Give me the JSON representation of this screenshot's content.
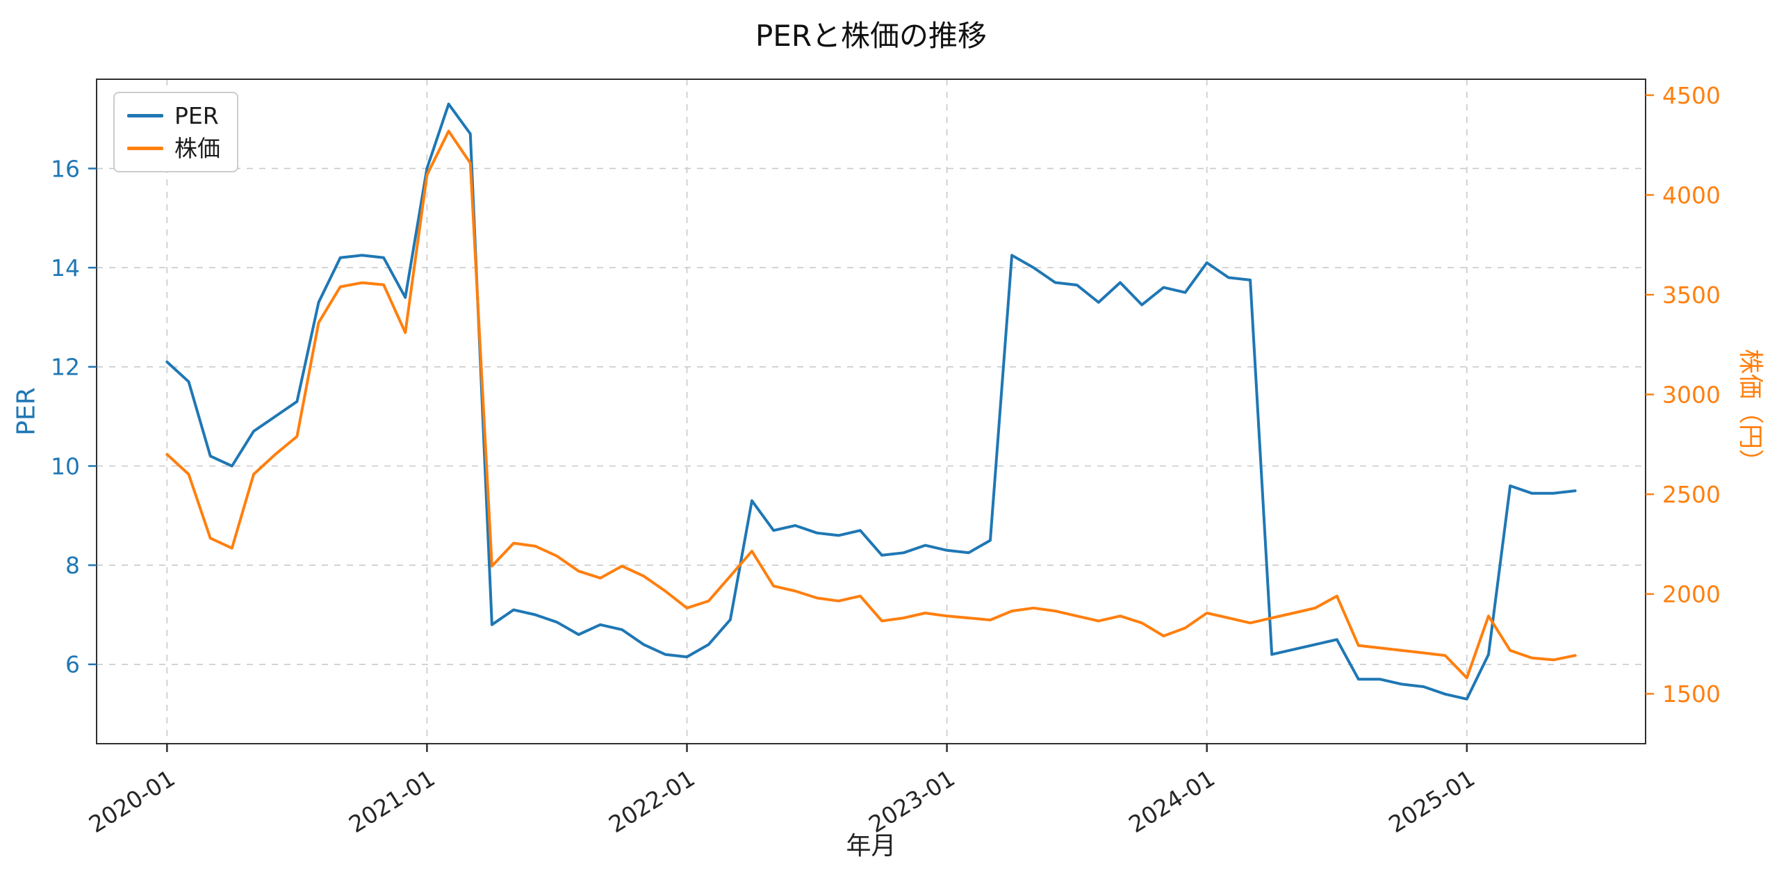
{
  "chart_data": {
    "type": "line",
    "title": "PERと株価の推移",
    "xlabel": "年月",
    "grid": true,
    "legend_position": "upper-left",
    "x": [
      "2020-01",
      "2020-02",
      "2020-03",
      "2020-04",
      "2020-05",
      "2020-06",
      "2020-07",
      "2020-08",
      "2020-09",
      "2020-10",
      "2020-11",
      "2020-12",
      "2021-01",
      "2021-02",
      "2021-03",
      "2021-04",
      "2021-05",
      "2021-06",
      "2021-07",
      "2021-08",
      "2021-09",
      "2021-10",
      "2021-11",
      "2021-12",
      "2022-01",
      "2022-02",
      "2022-03",
      "2022-04",
      "2022-05",
      "2022-06",
      "2022-07",
      "2022-08",
      "2022-09",
      "2022-10",
      "2022-11",
      "2022-12",
      "2023-01",
      "2023-02",
      "2023-03",
      "2023-04",
      "2023-05",
      "2023-06",
      "2023-07",
      "2023-08",
      "2023-09",
      "2023-10",
      "2023-11",
      "2023-12",
      "2024-01",
      "2024-02",
      "2024-03",
      "2024-04",
      "2024-05",
      "2024-06",
      "2024-07",
      "2024-08",
      "2024-09",
      "2024-10",
      "2024-11",
      "2024-12",
      "2025-01",
      "2025-02",
      "2025-03",
      "2025-04",
      "2025-05",
      "2025-06"
    ],
    "x_tick_indices": [
      0,
      12,
      24,
      36,
      48,
      60
    ],
    "x_tick_labels": [
      "2020-01",
      "2021-01",
      "2022-01",
      "2023-01",
      "2024-01",
      "2025-01"
    ],
    "left_axis": {
      "label": "PER",
      "color": "#1f77b4",
      "ticks": [
        6,
        8,
        10,
        12,
        14,
        16
      ],
      "range": [
        4.4,
        17.8
      ]
    },
    "right_axis": {
      "label": "株価（円）",
      "color": "#ff7f0e",
      "ticks": [
        1500,
        2000,
        2500,
        3000,
        3500,
        4000,
        4500
      ],
      "range": [
        1250,
        4580
      ]
    },
    "series": [
      {
        "name": "PER",
        "axis": "left",
        "color": "#1f77b4",
        "values": [
          12.1,
          11.7,
          10.2,
          10.0,
          10.7,
          11.0,
          11.3,
          13.3,
          14.2,
          14.25,
          14.2,
          13.4,
          16.0,
          17.3,
          16.7,
          6.8,
          7.1,
          7.0,
          6.85,
          6.6,
          6.8,
          6.7,
          6.4,
          6.2,
          6.15,
          6.4,
          6.9,
          9.3,
          8.7,
          8.8,
          8.65,
          8.6,
          8.7,
          8.2,
          8.25,
          8.4,
          8.3,
          8.25,
          8.5,
          14.25,
          14.0,
          13.7,
          13.65,
          13.3,
          13.7,
          13.25,
          13.6,
          13.5,
          14.1,
          13.8,
          13.75,
          6.2,
          6.3,
          6.4,
          6.5,
          5.7,
          5.7,
          5.6,
          5.55,
          5.4,
          5.3,
          6.2,
          9.6,
          9.45,
          9.45,
          9.5
        ]
      },
      {
        "name": "株価",
        "axis": "right",
        "color": "#ff7f0e",
        "values": [
          2700,
          2600,
          2280,
          2230,
          2600,
          2700,
          2790,
          3360,
          3540,
          3560,
          3550,
          3310,
          4100,
          4320,
          4160,
          2140,
          2255,
          2240,
          2190,
          2115,
          2080,
          2140,
          2090,
          2015,
          1930,
          1965,
          2090,
          2215,
          2040,
          2015,
          1980,
          1965,
          1990,
          1865,
          1880,
          1905,
          1890,
          1880,
          1870,
          1915,
          1930,
          1915,
          1890,
          1865,
          1890,
          1855,
          1790,
          1830,
          1905,
          1880,
          1855,
          1880,
          1905,
          1930,
          1990,
          1742,
          1730,
          1717,
          1705,
          1692,
          1580,
          1890,
          1717,
          1680,
          1670,
          1692
        ]
      }
    ]
  }
}
